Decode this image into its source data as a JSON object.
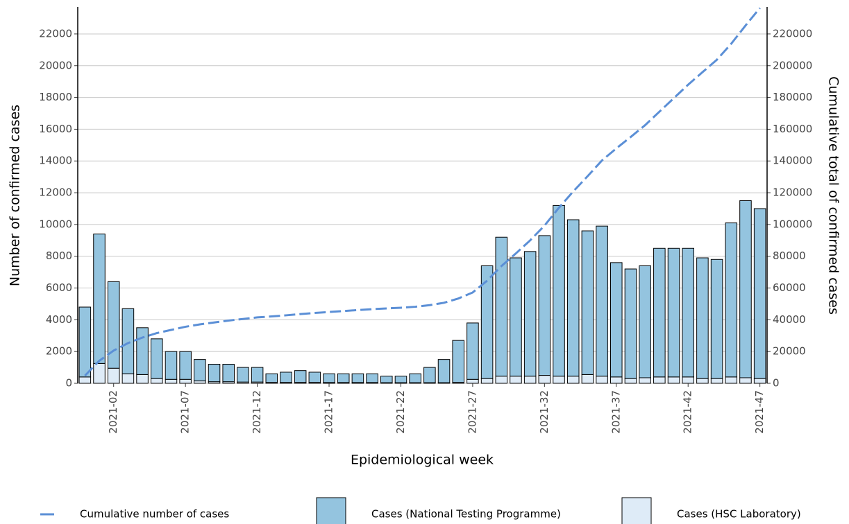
{
  "chart_data": {
    "type": "bar",
    "x_label": "Epidemiological week",
    "y_label": "Number of confirmed cases",
    "y2_label": "Cumulative total of confirmed cases",
    "categories": [
      null,
      null,
      "2021-02",
      null,
      null,
      null,
      null,
      "2021-07",
      null,
      null,
      null,
      null,
      "2021-12",
      null,
      null,
      null,
      null,
      "2021-17",
      null,
      null,
      null,
      null,
      "2021-22",
      null,
      null,
      null,
      null,
      "2021-27",
      null,
      null,
      null,
      null,
      "2021-32",
      null,
      null,
      null,
      null,
      "2021-37",
      null,
      null,
      null,
      null,
      "2021-42",
      null,
      null,
      null,
      null,
      "2021-47"
    ],
    "series": [
      {
        "name": "Cumulative number of cases",
        "color": "#5b8fd6",
        "axis": "y2",
        "dashed": true,
        "values": [
          4800,
          14200,
          20600,
          25300,
          28800,
          31600,
          33600,
          35600,
          37100,
          38300,
          39500,
          40500,
          41500,
          42100,
          42800,
          43600,
          44300,
          44900,
          45500,
          46100,
          46700,
          47150,
          47600,
          48200,
          49200,
          50700,
          53400,
          57200,
          64600,
          73800,
          81700,
          90000,
          99300,
          110500,
          120800,
          130400,
          140300,
          147900,
          155100,
          162500,
          171000,
          179500,
          188000,
          195900,
          203700,
          213800,
          225300,
          236300
        ]
      },
      {
        "name": "Cases (National Testing Programme)",
        "color": "#94c4df",
        "values": [
          4400,
          8150,
          5450,
          4100,
          2950,
          2500,
          1750,
          1750,
          1350,
          1100,
          1100,
          920,
          920,
          540,
          640,
          740,
          640,
          550,
          550,
          550,
          550,
          410,
          410,
          560,
          960,
          1460,
          2640,
          3550,
          7100,
          8750,
          7450,
          7850,
          8800,
          10750,
          9850,
          9050,
          9450,
          7200,
          6900,
          7050,
          8100,
          8100,
          8100,
          7600,
          7500,
          9700,
          11150,
          10700
        ]
      },
      {
        "name": "Cases (HSC Laboratory)",
        "color": "#deebf7",
        "values": [
          400,
          1250,
          950,
          600,
          550,
          300,
          250,
          250,
          150,
          100,
          100,
          80,
          80,
          60,
          60,
          60,
          60,
          50,
          50,
          50,
          50,
          40,
          40,
          40,
          40,
          40,
          60,
          250,
          300,
          450,
          450,
          450,
          500,
          450,
          450,
          550,
          450,
          400,
          300,
          350,
          400,
          400,
          400,
          300,
          300,
          400,
          350,
          300
        ]
      }
    ],
    "ylim": [
      0,
      23700
    ],
    "yticks": [
      0,
      2000,
      4000,
      6000,
      8000,
      10000,
      12000,
      14000,
      16000,
      18000,
      20000,
      22000
    ],
    "y2lim": [
      0,
      237000
    ],
    "y2ticks": [
      0,
      20000,
      40000,
      60000,
      80000,
      100000,
      120000,
      140000,
      160000,
      180000,
      200000,
      220000
    ],
    "grid": true,
    "stacked": true,
    "legend": "bottom"
  }
}
